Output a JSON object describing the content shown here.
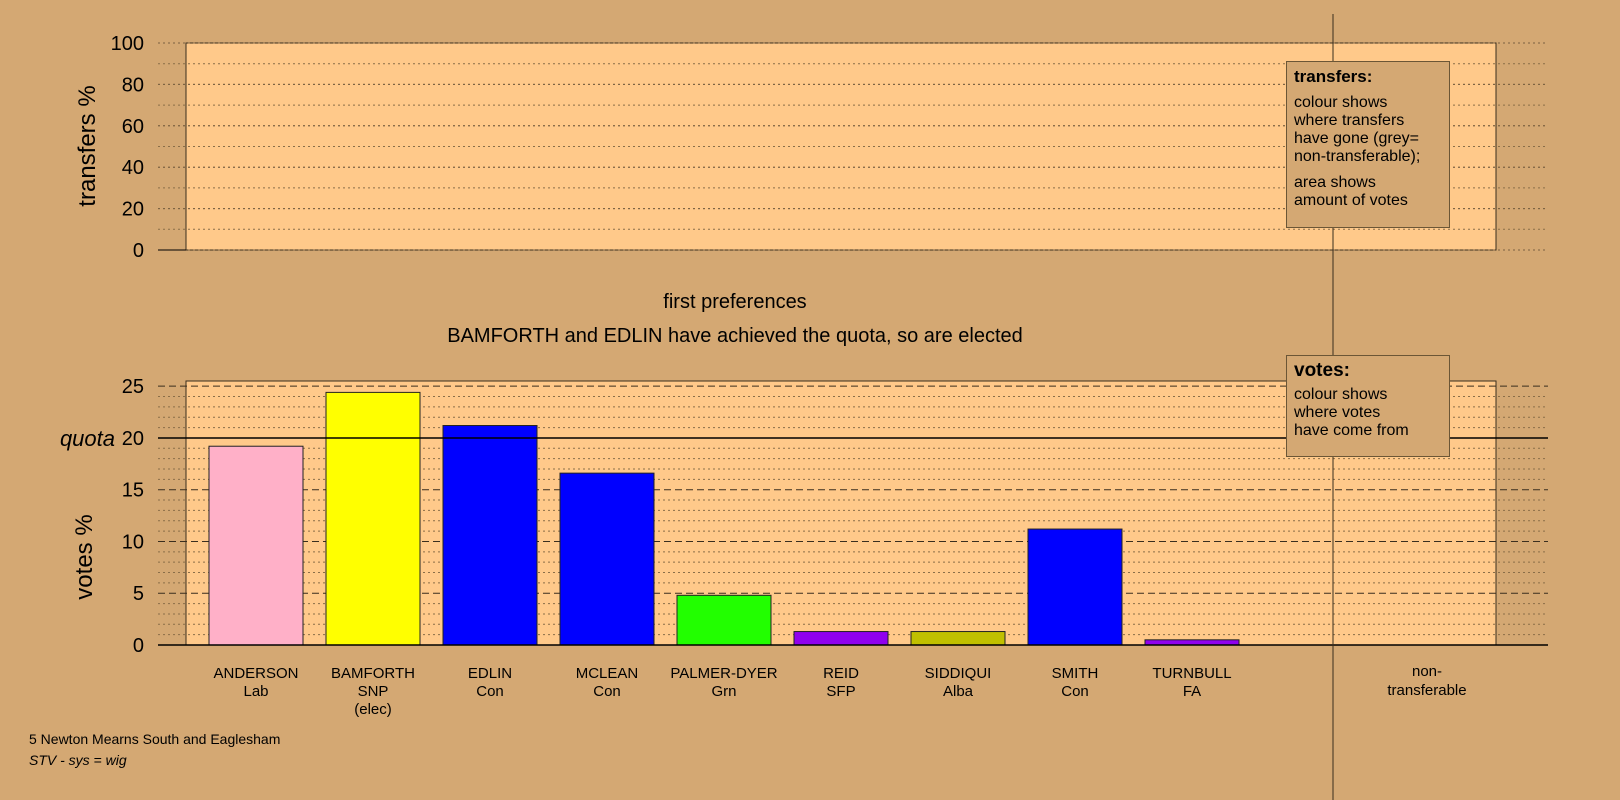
{
  "chart_data": {
    "type": "bar",
    "subtitle": "first preferences",
    "headline": "BAMFORTH and EDLIN have achieved the quota, so are elected",
    "transfers_panel": {
      "ylabel": "transfers %",
      "ylim": [
        0,
        100
      ],
      "yticks": [
        "0",
        "20",
        "40",
        "60",
        "80",
        "100"
      ]
    },
    "votes_panel": {
      "ylabel": "votes %",
      "ylim": [
        0,
        25.5
      ],
      "yticks": [
        "0",
        "5",
        "10",
        "15",
        "20",
        "25"
      ],
      "quota_label": "quota",
      "quota_value": 20
    },
    "candidates": [
      {
        "name": "ANDERSON",
        "party": "Lab",
        "note": "",
        "value": 19.2,
        "color": "#ffb0c8"
      },
      {
        "name": "BAMFORTH",
        "party": "SNP",
        "note": "(elec)",
        "value": 24.4,
        "color": "#ffff00"
      },
      {
        "name": "EDLIN",
        "party": "Con",
        "note": "",
        "value": 21.2,
        "color": "#0000ff"
      },
      {
        "name": "MCLEAN",
        "party": "Con",
        "note": "",
        "value": 16.6,
        "color": "#0000ff"
      },
      {
        "name": "PALMER-DYER",
        "party": "Grn",
        "note": "",
        "value": 4.8,
        "color": "#22ff00"
      },
      {
        "name": "REID",
        "party": "SFP",
        "note": "",
        "value": 1.3,
        "color": "#9000ee"
      },
      {
        "name": "SIDDIQUI",
        "party": "Alba",
        "note": "",
        "value": 1.3,
        "color": "#c0c000"
      },
      {
        "name": "SMITH",
        "party": "Con",
        "note": "",
        "value": 11.2,
        "color": "#0000ff"
      },
      {
        "name": "TURNBULL",
        "party": "FA",
        "note": "",
        "value": 0.5,
        "color": "#9000ee"
      }
    ],
    "nontransferable_label": [
      "non-",
      "transferable"
    ],
    "colors": {
      "background": "#d4a873",
      "plot_area": "#ffc98a"
    }
  },
  "legends": {
    "transfers": {
      "title": "transfers:",
      "lines1": [
        "colour shows",
        "where transfers",
        "have gone (grey=",
        "non-transferable);"
      ],
      "lines2": [
        "area shows",
        "amount of votes"
      ]
    },
    "votes": {
      "title": "votes:",
      "lines": [
        "colour shows",
        "where votes",
        "have come from"
      ]
    }
  },
  "footer": {
    "ward": "5 Newton Mearns South and Eaglesham",
    "system": "STV - sys = wig"
  }
}
